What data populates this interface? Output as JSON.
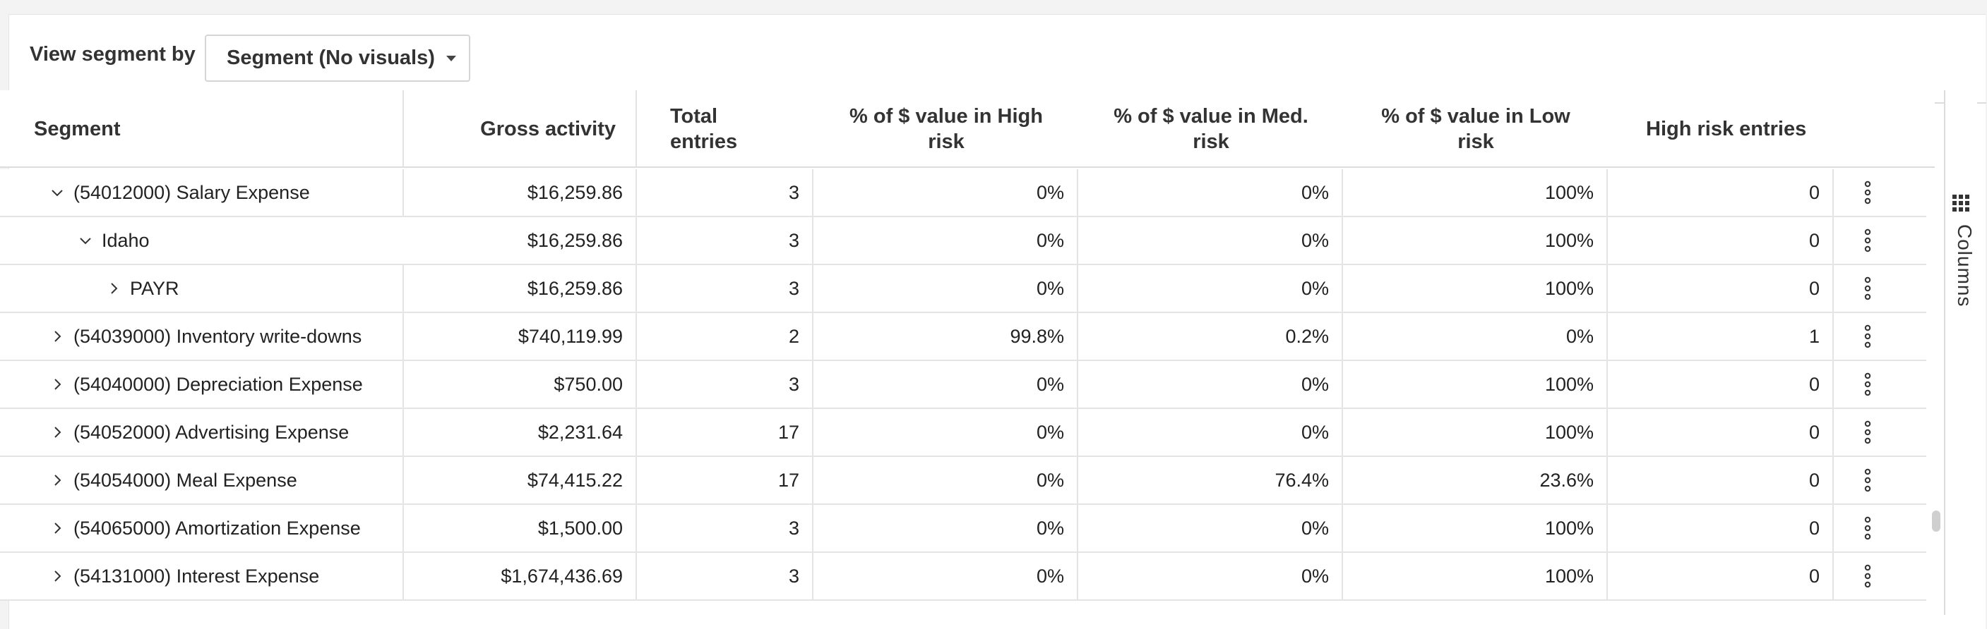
{
  "toolbar": {
    "label": "View segment by",
    "dropdown_value": "Segment (No visuals)"
  },
  "table": {
    "headers": {
      "segment": "Segment",
      "gross_activity": "Gross activity",
      "total_entries": "Total entries",
      "pct_high": "% of $ value in High risk",
      "pct_med": "% of $ value in Med. risk",
      "pct_low": "% of $ value in Low risk",
      "high_risk_entries": "High risk entries"
    },
    "rows": [
      {
        "label": "(54012000) Salary Expense",
        "expanded": true,
        "level": 0,
        "gross": "$16,259.86",
        "entries": "3",
        "high": "0%",
        "med": "0%",
        "low": "100%",
        "hre": "0"
      },
      {
        "label": "Idaho",
        "expanded": true,
        "level": 1,
        "gross": "$16,259.86",
        "entries": "3",
        "high": "0%",
        "med": "0%",
        "low": "100%",
        "hre": "0"
      },
      {
        "label": "PAYR",
        "expanded": false,
        "level": 2,
        "gross": "$16,259.86",
        "entries": "3",
        "high": "0%",
        "med": "0%",
        "low": "100%",
        "hre": "0"
      },
      {
        "label": "(54039000) Inventory write-downs",
        "expanded": false,
        "level": 0,
        "gross": "$740,119.99",
        "entries": "2",
        "high": "99.8%",
        "med": "0.2%",
        "low": "0%",
        "hre": "1"
      },
      {
        "label": "(54040000) Depreciation Expense",
        "expanded": false,
        "level": 0,
        "gross": "$750.00",
        "entries": "3",
        "high": "0%",
        "med": "0%",
        "low": "100%",
        "hre": "0"
      },
      {
        "label": "(54052000) Advertising Expense",
        "expanded": false,
        "level": 0,
        "gross": "$2,231.64",
        "entries": "17",
        "high": "0%",
        "med": "0%",
        "low": "100%",
        "hre": "0"
      },
      {
        "label": "(54054000) Meal Expense",
        "expanded": false,
        "level": 0,
        "gross": "$74,415.22",
        "entries": "17",
        "high": "0%",
        "med": "76.4%",
        "low": "23.6%",
        "hre": "0"
      },
      {
        "label": "(54065000) Amortization Expense",
        "expanded": false,
        "level": 0,
        "gross": "$1,500.00",
        "entries": "3",
        "high": "0%",
        "med": "0%",
        "low": "100%",
        "hre": "0"
      },
      {
        "label": "(54131000) Interest Expense",
        "expanded": false,
        "level": 0,
        "gross": "$1,674,436.69",
        "entries": "3",
        "high": "0%",
        "med": "0%",
        "low": "100%",
        "hre": "0"
      }
    ]
  },
  "columns_panel": {
    "label": "Columns",
    "icon": "grid-icon"
  },
  "row_menu_icon": "kebab-icon"
}
